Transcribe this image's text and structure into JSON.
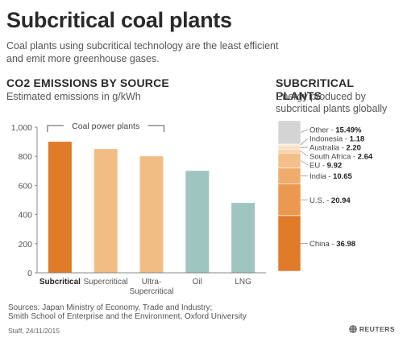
{
  "header": {
    "title": "Subcritical coal plants",
    "subtitle_line1": "Coal plants using subcritical technology are the least efficient",
    "subtitle_line2": "and emit more greenhouse gases."
  },
  "left_section": {
    "title": "CO2 EMISSIONS BY SOURCE",
    "subtitle": "Estimated emissions in g/kWh",
    "bracket_label": "Coal power plants"
  },
  "right_section": {
    "title": "SUBCRITICAL PLANTS",
    "subtitle_line1": "Energy produced by",
    "subtitle_line2": "subcritical plants globally"
  },
  "chart_data": [
    {
      "type": "bar",
      "title": "CO2 EMISSIONS BY SOURCE",
      "ylabel": "Estimated emissions in g/kWh",
      "categories": [
        [
          "Subcritical"
        ],
        [
          "Supercritical"
        ],
        [
          "Ultra-",
          "Supercritical"
        ],
        [
          "Oil"
        ],
        [
          "LNG"
        ]
      ],
      "values": [
        900,
        850,
        800,
        700,
        480
      ],
      "colors": [
        "#e07b2a",
        "#f2bd84",
        "#f2bd84",
        "#9fc5c0",
        "#9fc5c0"
      ],
      "highlight_index": 0,
      "yticks": [
        0,
        200,
        400,
        600,
        800,
        "1,000"
      ],
      "ylim": [
        0,
        1000
      ],
      "grid": false
    },
    {
      "type": "stacked-bar",
      "title": "SUBCRITICAL PLANTS",
      "unit": "%",
      "segments": [
        {
          "name": "China",
          "value": 36.98,
          "value_label": "36.98",
          "color": "#e07b2a"
        },
        {
          "name": "U.S.",
          "value": 20.94,
          "value_label": "20.94",
          "color": "#ec9850"
        },
        {
          "name": "India",
          "value": 10.65,
          "value_label": "10.65",
          "color": "#f0ac6c"
        },
        {
          "name": "EU",
          "value": 9.92,
          "value_label": "9.92",
          "color": "#f4bf8a"
        },
        {
          "name": "South Africa",
          "value": 2.64,
          "value_label": "2.64",
          "color": "#f8d3ac"
        },
        {
          "name": "Australia",
          "value": 2.2,
          "value_label": "2.20",
          "color": "#f9dec0"
        },
        {
          "name": "Indonesia",
          "value": 1.18,
          "value_label": "1.18",
          "color": "#fbe8d4"
        },
        {
          "name": "Other",
          "value": 15.49,
          "value_label": "15.49%",
          "color": "#d4d4d4"
        }
      ]
    }
  ],
  "footer": {
    "sources_line1": "Sources: Japan Ministry of Economy, Trade and Industry;",
    "sources_line2": "Smith School of Enterprise and the Environment, Oxford University",
    "credit": "Staff, 24/11/2015",
    "logo_text": "REUTERS"
  }
}
